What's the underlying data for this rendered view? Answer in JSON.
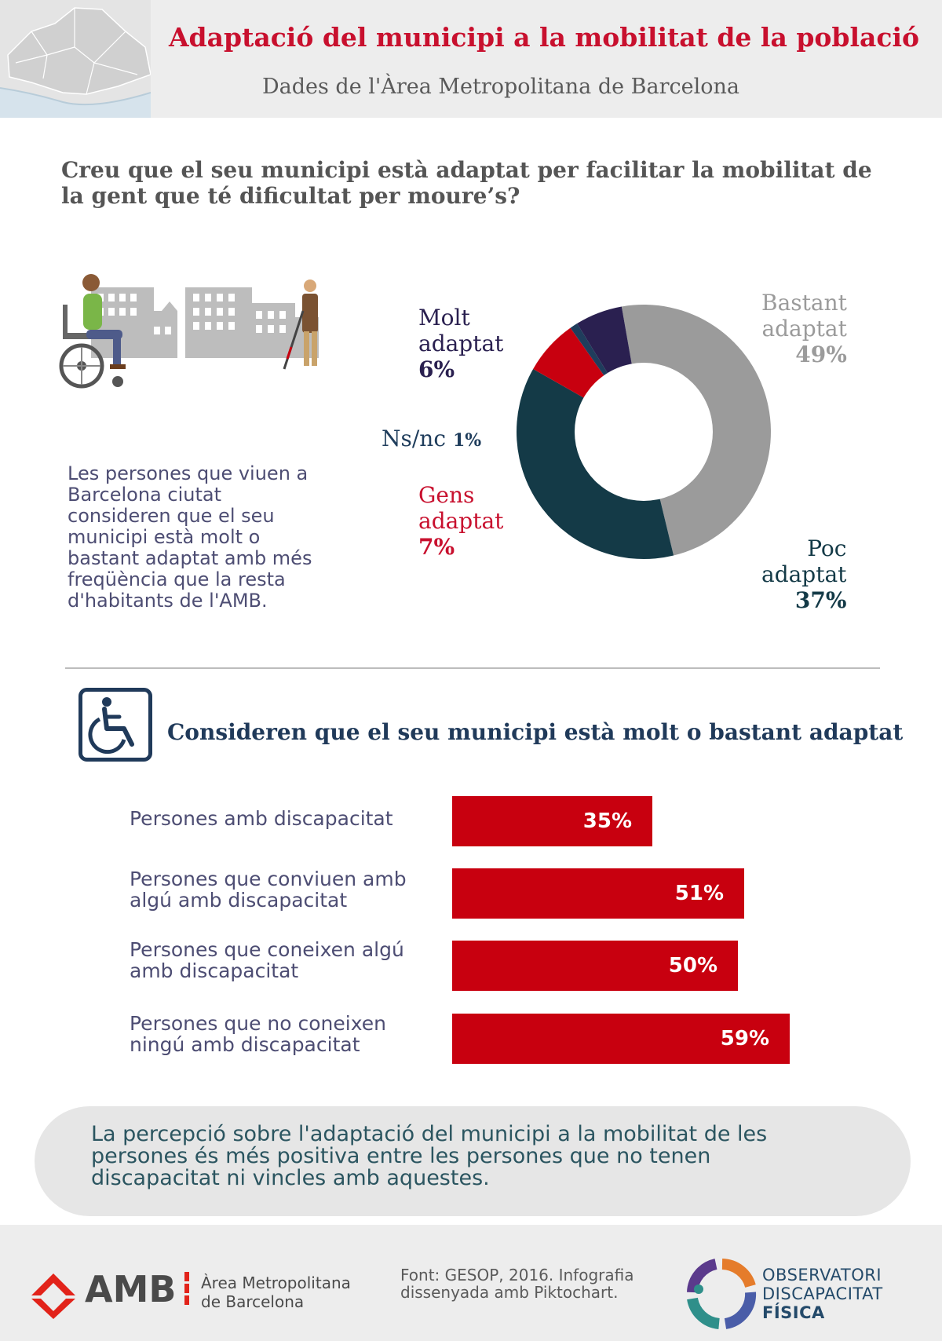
{
  "header": {
    "title": "Adaptació del municipi a la mobilitat de la població",
    "subtitle": "Dades de l'Àrea Metropolitana de Barcelona"
  },
  "question": "Creu que el seu municipi està adaptat per facilitar la mobilitat de la gent que té dificultat per moure’s?",
  "note": "Les persones que viuen a Barcelona ciutat consideren que el seu municipi està molt o bastant adaptat amb més freqüència que la resta d'habitants de l'AMB.",
  "section_title": "Consideren que el seu municipi està molt o bastant adaptat",
  "conclusion": "La percepció sobre l'adaptació del municipi a la mobilitat de les persones és més positiva entre les persones que no tenen discapacitat ni vincles amb aquestes.",
  "footer": {
    "amb": "AMB",
    "amb_full": "Àrea Metropolitana de Barcelona",
    "source": "Font: GESOP, 2016. Infografia dissenyada amb Piktochart.",
    "odf_line1": "OBSERVATORI",
    "odf_line2": "DISCAPACITAT",
    "odf_line3": "FÍSICA"
  },
  "icons": [
    "city-map-icon",
    "wheelchair-user-icon",
    "buildings-icon",
    "blind-person-icon",
    "accessibility-icon",
    "amb-logo-icon",
    "observatori-logo-icon"
  ],
  "colors": {
    "brand_red": "#c8102e",
    "bar_red": "#c8000f",
    "molt": "#2a2050",
    "bastant": "#9b9b9b",
    "nsnc": "#1f3d5c",
    "gens": "#c8000f",
    "poc": "#143a47"
  },
  "chart_data": [
    {
      "type": "pie",
      "title": "",
      "slices": [
        {
          "label": "Bastant adaptat",
          "line1": "Bastant",
          "line2": "adaptat",
          "value": 49,
          "display": "49%",
          "color": "#9b9b9b"
        },
        {
          "label": "Poc adaptat",
          "line1": "Poc",
          "line2": "adaptat",
          "value": 37,
          "display": "37%",
          "color": "#143a47"
        },
        {
          "label": "Gens adaptat",
          "line1": "Gens",
          "line2": "adaptat",
          "value": 7,
          "display": "7%",
          "color": "#c8000f"
        },
        {
          "label": "Ns/nc",
          "line1": "Ns/nc",
          "line2": "",
          "value": 1,
          "display": "1%",
          "color": "#1f3d5c"
        },
        {
          "label": "Molt adaptat",
          "line1": "Molt",
          "line2": "adaptat",
          "value": 6,
          "display": "6%",
          "color": "#2a2050"
        }
      ]
    },
    {
      "type": "bar",
      "orientation": "horizontal",
      "title": "Consideren que el seu municipi està molt o bastant adaptat",
      "categories": [
        "Persones amb discapacitat",
        "Persones que conviuen amb algú amb discapacitat",
        "Persones que coneixen algú amb discapacitat",
        "Persones que no coneixen ningú amb discapacitat"
      ],
      "values": [
        35,
        51,
        50,
        59
      ],
      "value_labels": [
        "35%",
        "51%",
        "50%",
        "59%"
      ]
    }
  ]
}
